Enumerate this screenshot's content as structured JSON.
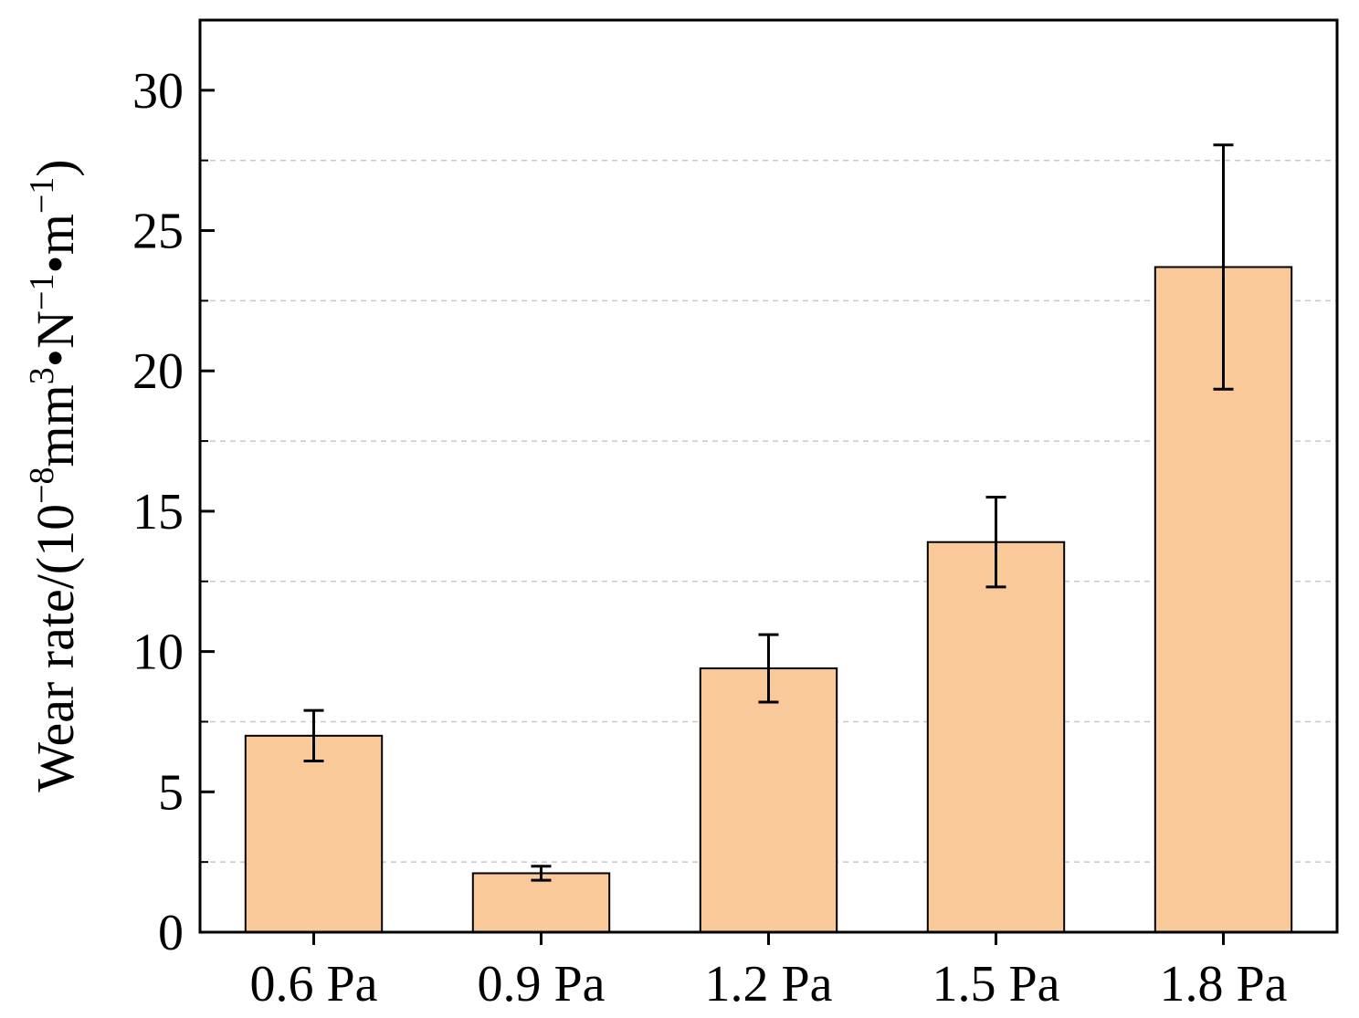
{
  "chart_data": {
    "type": "bar",
    "title": "",
    "xlabel": "",
    "ylabel": {
      "prefix": "Wear rate/(10",
      "exp1": "−8",
      "unit1": "mm",
      "exp2": "3",
      "unit2": "•N",
      "exp3": "−1",
      "unit3": "•m",
      "exp4": "−1",
      "suffix": ")"
    },
    "categories": [
      "0.6 Pa",
      "0.9 Pa",
      "1.2 Pa",
      "1.5 Pa",
      "1.8 Pa"
    ],
    "values": [
      7.0,
      2.1,
      9.4,
      13.9,
      23.7
    ],
    "errors": [
      0.9,
      0.25,
      1.2,
      1.6,
      4.35
    ],
    "ylim": [
      0,
      32.5
    ],
    "yticks": [
      0,
      5,
      10,
      15,
      20,
      25,
      30
    ],
    "ytick_labels": [
      "0",
      "5",
      "10",
      "15",
      "20",
      "25",
      "30"
    ],
    "minor_gridlines": [
      2.5,
      7.5,
      12.5,
      17.5,
      22.5,
      27.5
    ],
    "grid": "horizontal minor dashed",
    "legend": "none",
    "colors": {
      "bar_fill": "#f9c99a",
      "bar_stroke": "#000000",
      "error_bar": "#000000",
      "grid": "#c8c8c8",
      "axis": "#000000"
    }
  }
}
